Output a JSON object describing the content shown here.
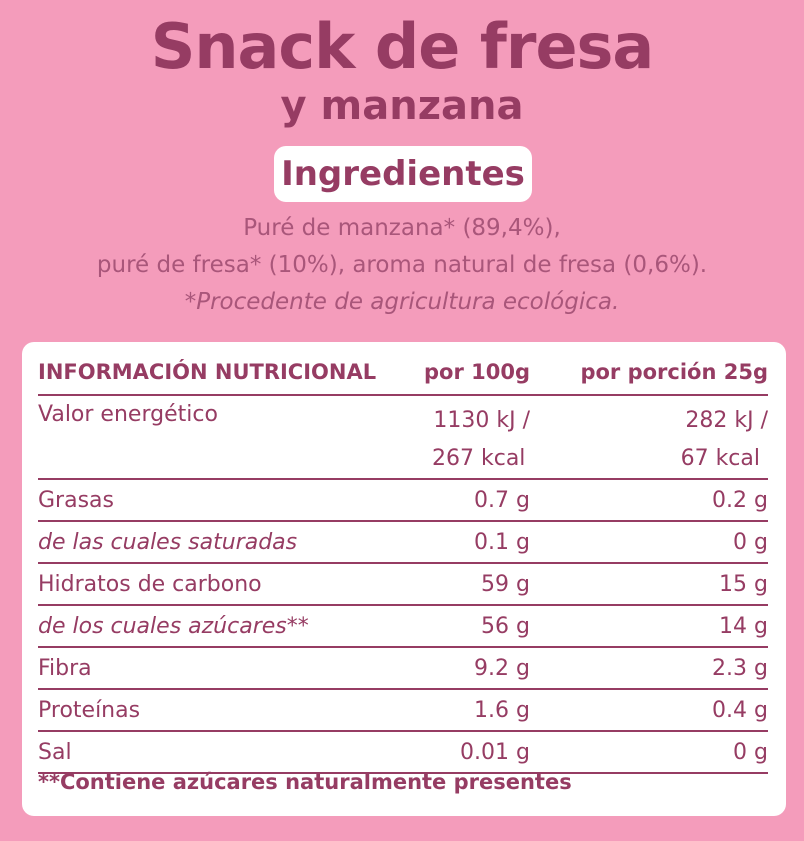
{
  "header": {
    "title": "Snack de fresa",
    "subtitle": "y manzana"
  },
  "ingredients": {
    "label": "Ingredientes",
    "line1": "Puré de manzana* (89,4%),",
    "line2": "puré de fresa* (10%), aroma natural de fresa (0,6%).",
    "note": "*Procedente de agricultura ecológica."
  },
  "nutrition": {
    "headers": [
      "INFORMACIÓN NUTRICIONAL",
      "por 100g",
      "por porción 25g"
    ],
    "energy": {
      "label": "Valor energético",
      "per100": [
        "1130 kJ /",
        "267 kcal"
      ],
      "perPortion": [
        "282 kJ /",
        "67 kcal"
      ]
    },
    "rows": [
      {
        "label": "Grasas",
        "per100": "0.7 g",
        "perPortion": "0.2 g"
      },
      {
        "label": "de las cuales saturadas",
        "per100": "0.1 g",
        "perPortion": "0 g"
      },
      {
        "label": "Hidratos de carbono",
        "per100": "59 g",
        "perPortion": "15 g"
      },
      {
        "label": "de los cuales azúcares**",
        "per100": "56 g",
        "perPortion": "14 g"
      },
      {
        "label": "Fibra",
        "per100": "9.2 g",
        "perPortion": "2.3 g"
      },
      {
        "label": "Proteínas",
        "per100": "1.6 g",
        "perPortion": "0.4 g"
      },
      {
        "label": "Sal",
        "per100": "0.01 g",
        "perPortion": "0 g"
      }
    ],
    "footnote": "**Contiene azúcares naturalmente presentes"
  }
}
